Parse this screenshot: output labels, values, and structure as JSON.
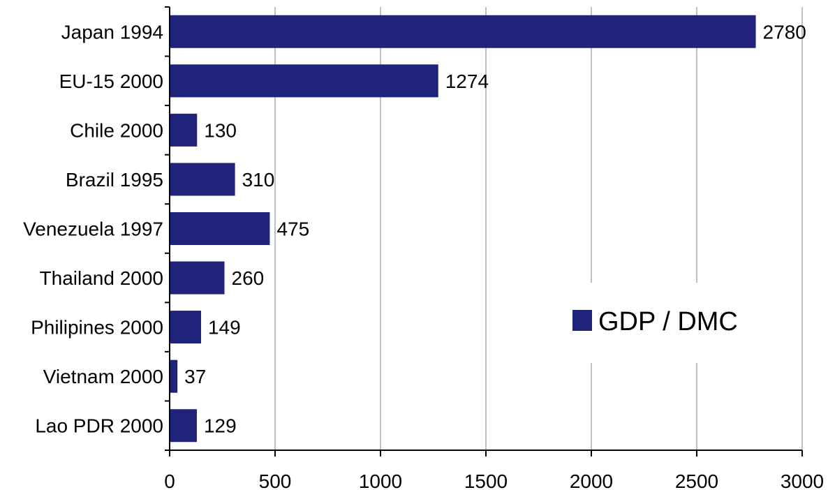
{
  "chart_data": {
    "type": "bar",
    "orientation": "horizontal",
    "categories": [
      "Japan 1994",
      "EU-15 2000",
      "Chile 2000",
      "Brazil 1995",
      "Venezuela 1997",
      "Thailand 2000",
      "Philipines 2000",
      "Vietnam 2000",
      "Lao PDR 2000"
    ],
    "series": [
      {
        "name": "GDP / DMC",
        "values": [
          2780,
          1274,
          130,
          310,
          475,
          260,
          149,
          37,
          129
        ],
        "color": "#1f237a"
      }
    ],
    "data_labels": [
      "2780",
      "1274",
      "130",
      "310",
      "475",
      "260",
      "149",
      "37",
      "129"
    ],
    "xlim": [
      0,
      3000
    ],
    "x_ticks": [
      0,
      500,
      1000,
      1500,
      2000,
      2500,
      3000
    ],
    "x_tick_labels": [
      "0",
      "500",
      "1000",
      "1500",
      "2000",
      "2500",
      "3000"
    ],
    "title": "",
    "xlabel": "",
    "ylabel": "",
    "grid": "vertical",
    "grid_color": "#c0c0c0",
    "legend_position": "right"
  }
}
